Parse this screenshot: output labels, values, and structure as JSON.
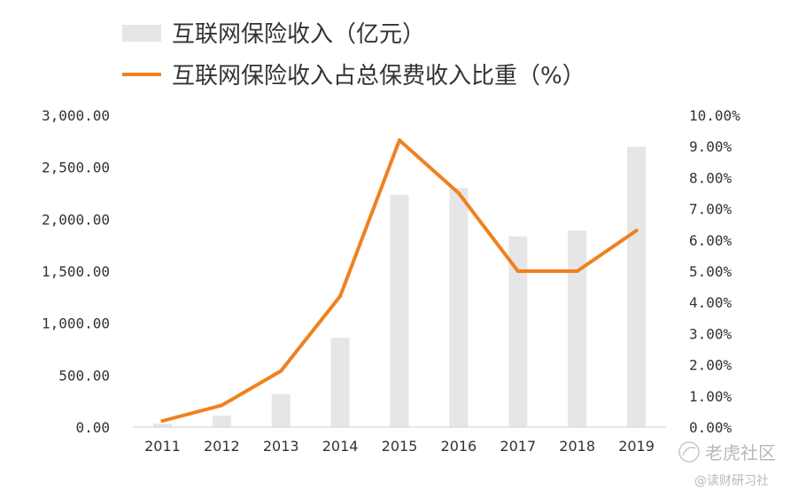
{
  "chart_data": {
    "type": "bar",
    "categories": [
      "2011",
      "2012",
      "2013",
      "2014",
      "2015",
      "2016",
      "2017",
      "2018",
      "2019"
    ],
    "series": [
      {
        "name": "互联网保险收入（亿元）",
        "type": "bar",
        "axis": "left",
        "color": "#e6e6e6",
        "values": [
          32,
          110,
          318,
          859,
          2234,
          2299,
          1835,
          1890,
          2696
        ]
      },
      {
        "name": "互联网保险收入占总保费收入比重（%）",
        "type": "line",
        "axis": "right",
        "color": "#f0811e",
        "values": [
          0.2,
          0.7,
          1.8,
          4.2,
          9.2,
          7.5,
          5.0,
          5.0,
          6.3
        ]
      }
    ],
    "y_left": {
      "lim": [
        0,
        3000
      ],
      "ticks": [
        "0.00",
        "500.00",
        "1,000.00",
        "1,500.00",
        "2,000.00",
        "2,500.00",
        "3,000.00"
      ]
    },
    "y_right": {
      "lim": [
        0,
        10
      ],
      "ticks": [
        "0.00%",
        "1.00%",
        "2.00%",
        "3.00%",
        "4.00%",
        "5.00%",
        "6.00%",
        "7.00%",
        "8.00%",
        "9.00%",
        "10.00%"
      ]
    },
    "grid": false,
    "legend_position": "top-left"
  },
  "watermark": {
    "line1": "老虎社区",
    "line2": "@读财研习社"
  }
}
